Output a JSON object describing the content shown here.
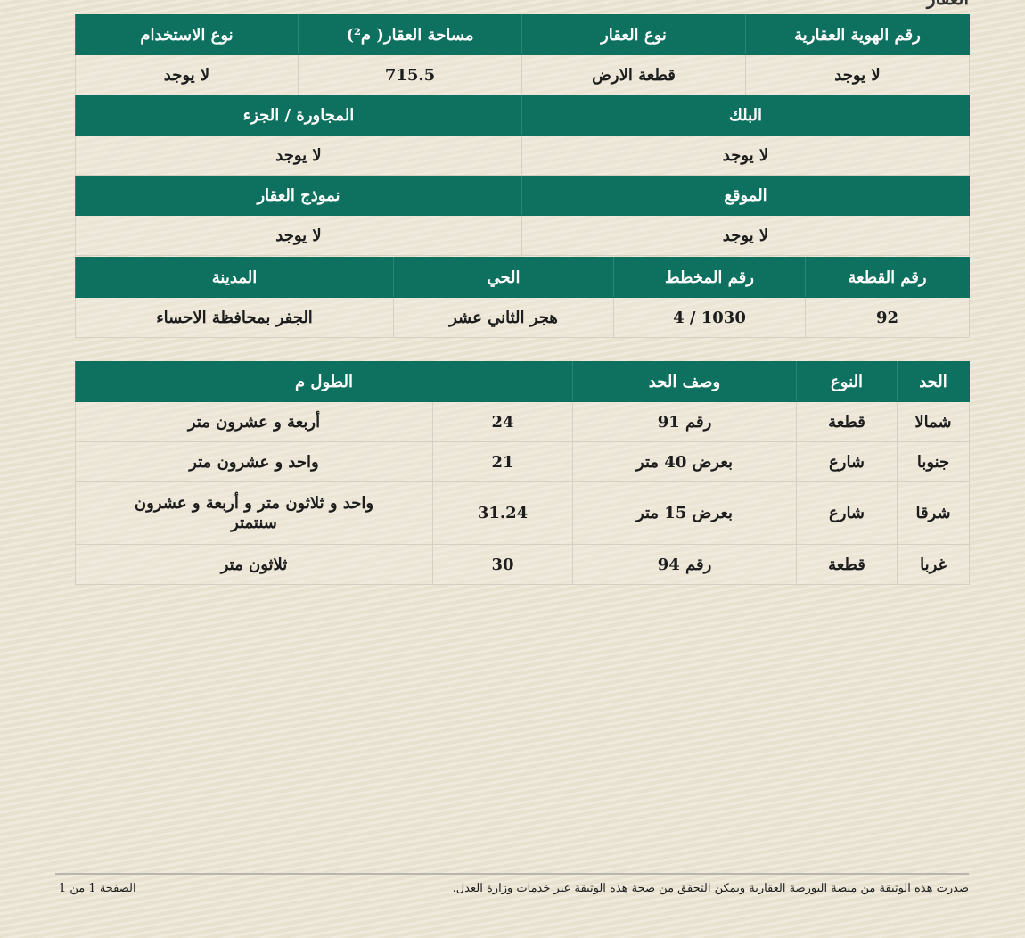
{
  "section_title": "العقار",
  "property_table": {
    "headers": [
      "رقم الهوية العقارية",
      "نوع العقار",
      "مساحة العقار( م²)",
      "نوع الاستخدام"
    ],
    "values": [
      "لا يوجد",
      "قطعة الارض",
      "715.5",
      "لا يوجد"
    ],
    "block_header": "البلك",
    "part_header": "المجاورة / الجزء",
    "block_value": "لا يوجد",
    "part_value": "لا يوجد",
    "location_header": "الموقع",
    "model_header": "نموذج العقار",
    "location_value": "لا يوجد",
    "model_value": "لا يوجد",
    "plot_headers": [
      "رقم القطعة",
      "رقم المخطط",
      "الحي",
      "المدينة"
    ],
    "plot_values": [
      "92",
      "4 / 1030",
      "هجر الثاني عشر",
      "الجفر بمحافظة الاحساء"
    ]
  },
  "boundaries_table": {
    "headers": [
      "الحد",
      "النوع",
      "وصف الحد",
      "الطول م"
    ],
    "rows": [
      {
        "side": "شمالا",
        "type": "قطعة",
        "desc": "رقم 91",
        "length": "24",
        "length_text": "أربعة و عشرون متر"
      },
      {
        "side": "جنوبا",
        "type": "شارع",
        "desc": "بعرض 40 متر",
        "length": "21",
        "length_text": "واحد و عشرون متر"
      },
      {
        "side": "شرقا",
        "type": "شارع",
        "desc": "بعرض 15 متر",
        "length": "31.24",
        "length_text": "واحد و ثلاثون متر و أربعة و عشرون سنتمتر"
      },
      {
        "side": "غربا",
        "type": "قطعة",
        "desc": "رقم 94",
        "length": "30",
        "length_text": "ثلاثون متر"
      }
    ]
  },
  "footer": {
    "note": "صدرت هذه الوثيقة من منصة البورصة العقارية ويمكن التحقق من صحة هذه الوثيقة عبر خدمات وزارة العدل.",
    "page": "الصفحة 1 من 1"
  }
}
